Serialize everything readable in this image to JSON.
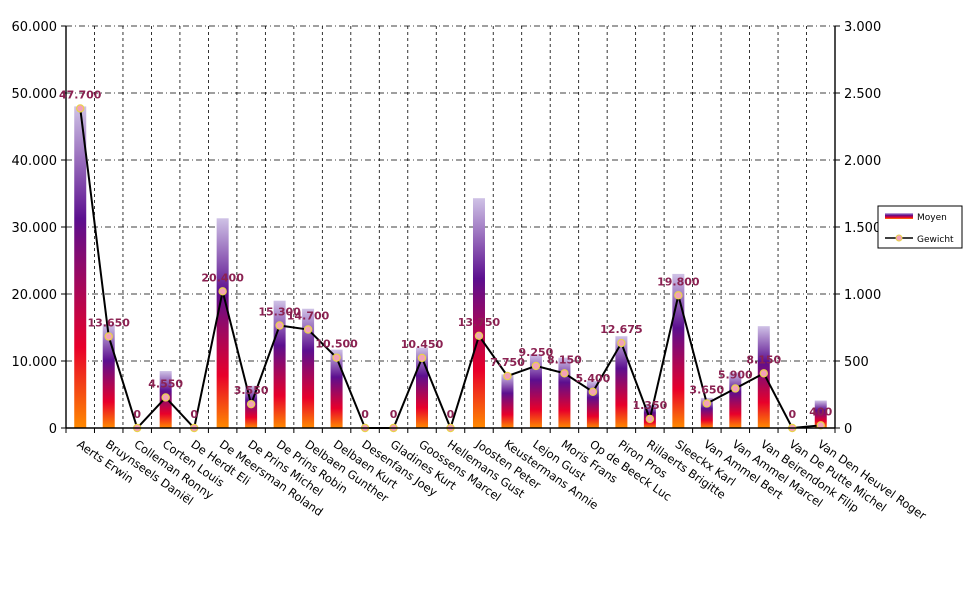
{
  "chart_data": {
    "type": "bar",
    "categories": [
      "Aerts Erwin",
      "Bruynseels Daniël",
      "Colleman Ronny",
      "Corten Louis",
      "De Herdt Eli",
      "De Meersman Roland",
      "De Prins Michel",
      "De Prins Robin",
      "Delbaen Gunther",
      "Delbaen Kurt",
      "Desenfans Joey",
      "Gladines Kurt",
      "Goossens Marcel",
      "Hellemans Gust",
      "Joosten Peter",
      "Keustermans Annie",
      "Lejon Gust",
      "Moris Frans",
      "Op de Beeck Luc",
      "Piron Pros",
      "Rillaerts Brigitte",
      "Sleeckx Karl",
      "Van Ammel Bert",
      "Van Ammel Marcel",
      "Van Beirendonk Filip",
      "Van De Putte Michel",
      "Van Den Heuvel Roger"
    ],
    "series": [
      {
        "name": "Moyen",
        "axis": "left",
        "chart": "bar",
        "values": [
          48000,
          15500,
          0,
          8500,
          0,
          31300,
          6300,
          19000,
          17800,
          11700,
          0,
          0,
          12000,
          0,
          34300,
          8000,
          11000,
          10500,
          7000,
          13700,
          3500,
          23000,
          4500,
          8300,
          15200,
          0,
          4100
        ]
      },
      {
        "name": "Gewicht",
        "axis": "right",
        "chart": "line",
        "values": [
          2385,
          683,
          0,
          228,
          0,
          1020,
          178,
          765,
          735,
          525,
          0,
          0,
          523,
          0,
          688,
          388,
          463,
          408,
          270,
          634,
          68,
          990,
          183,
          295,
          408,
          0,
          20
        ],
        "labels": [
          "47.700",
          "13.650",
          "0",
          "4.550",
          "0",
          "20.400",
          "3.550",
          "15.300",
          "14.700",
          "10.500",
          "0",
          "0",
          "10.450",
          "0",
          "13.750",
          "7.750",
          "9.250",
          "8.150",
          "5.400",
          "12.675",
          "1.350",
          "19.800",
          "3.650",
          "5.900",
          "8.150",
          "0",
          "400"
        ]
      }
    ],
    "y_left": {
      "min": 0,
      "max": 60000,
      "ticks": [
        0,
        10000,
        20000,
        30000,
        40000,
        50000,
        60000
      ],
      "tick_labels": [
        "0",
        "10.000",
        "20.000",
        "30.000",
        "40.000",
        "50.000",
        "60.000"
      ]
    },
    "y_right": {
      "min": 0,
      "max": 3000,
      "ticks": [
        0,
        500,
        1000,
        1500,
        2000,
        2500,
        3000
      ],
      "tick_labels": [
        "0",
        "500",
        "1.000",
        "1.500",
        "2.000",
        "2.500",
        "3.000"
      ]
    },
    "grid": true,
    "legend_position": "right",
    "colors": {
      "bar_top": "#c8b8e0",
      "bar_mid": "#5c0f8f",
      "bar_low": "#e8002a",
      "bar_base": "#ff7a00",
      "line": "#000000",
      "marker_fill": "#f4a0b8",
      "marker_edge": "#e8d24a",
      "label": "#8b2252"
    }
  }
}
